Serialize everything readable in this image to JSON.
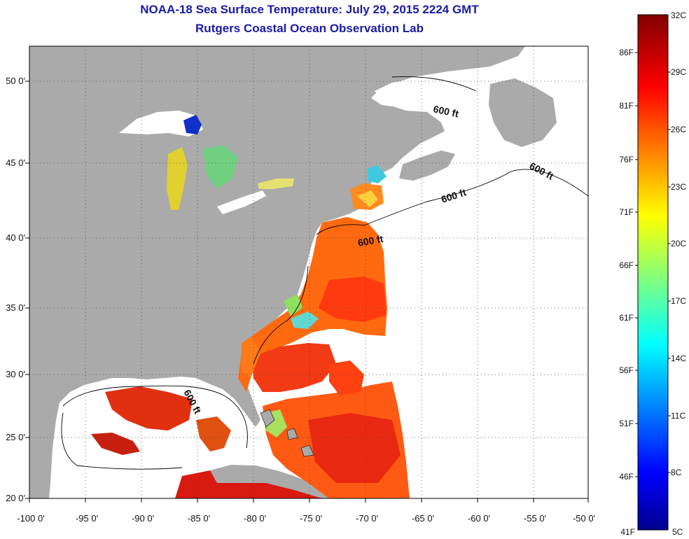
{
  "title": "NOAA-18 Sea Surface Temperature:  July 29, 2015 2224 GMT",
  "subtitle": "Rutgers Coastal Ocean Observation Lab",
  "map": {
    "lon_range": [
      -100,
      -50
    ],
    "lat_range": [
      20,
      52
    ],
    "x_ticks": [
      "-100 0'",
      "-95 0'",
      "-90 0'",
      "-85 0'",
      "-80 0'",
      "-75 0'",
      "-70 0'",
      "-65 0'",
      "-60 0'",
      "-55 0'",
      "-50 0'"
    ],
    "y_ticks": [
      "20 0'",
      "25 0'",
      "30 0'",
      "35 0'",
      "40 0'",
      "45 0'",
      "50 0'"
    ],
    "contour_label": "600 ft",
    "land_color": "#aaaaaa",
    "ocean_nodata_color": "#ffffff"
  },
  "colorbar": {
    "celsius_labels": [
      "32C",
      "29C",
      "26C",
      "23C",
      "20C",
      "17C",
      "14C",
      "11C",
      "8C",
      "5C"
    ],
    "fahrenheit_labels": [
      "86F",
      "81F",
      "76F",
      "71F",
      "66F",
      "61F",
      "56F",
      "51F",
      "46F",
      "41F"
    ],
    "range_c": [
      5,
      32
    ],
    "range_f": [
      41,
      86
    ],
    "colormap": "jet"
  }
}
